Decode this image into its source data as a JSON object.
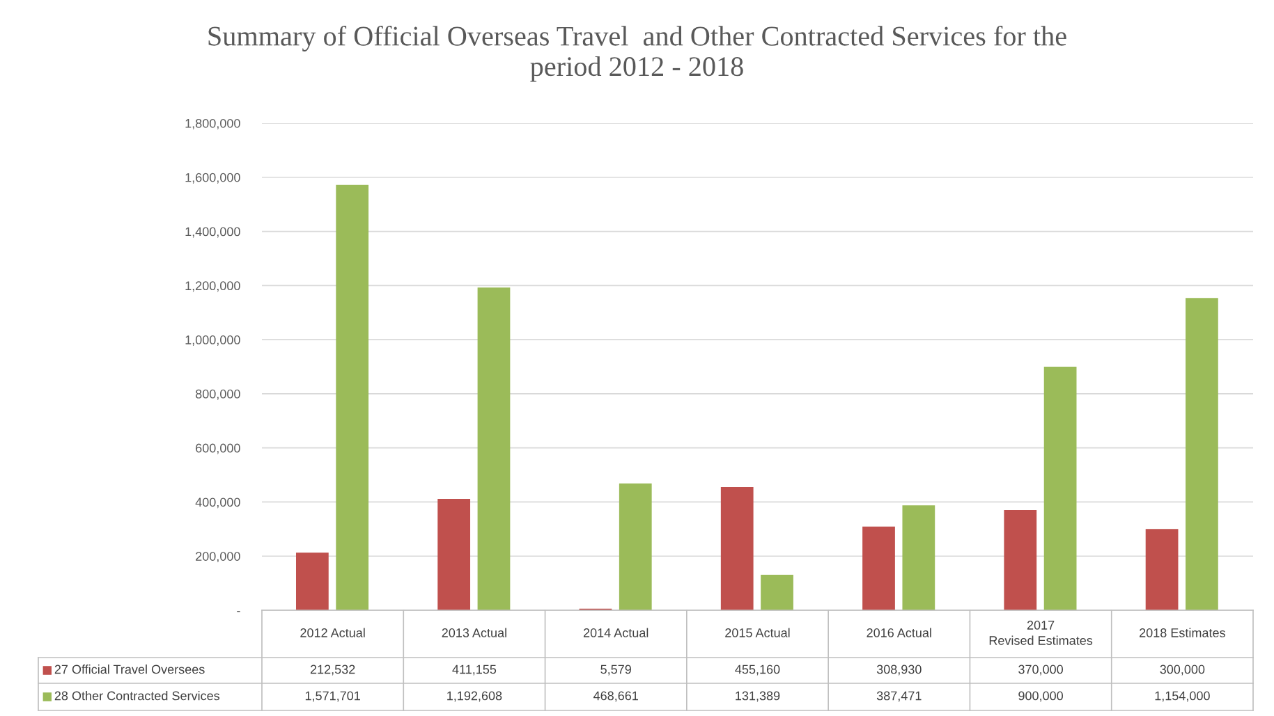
{
  "chart_data": {
    "type": "bar",
    "title": "Summary of Official Overseas Travel  and Other Contracted Services for the period 2012 - 2018",
    "categories": [
      "2012 Actual",
      "2013 Actual",
      "2014 Actual",
      "2015 Actual",
      "2016 Actual",
      "2017 Revised Estimates",
      "2018 Estimates"
    ],
    "series": [
      {
        "name": "27 Official Travel Oversees",
        "color": "#c0504d",
        "values": [
          212532,
          411155,
          5579,
          455160,
          308930,
          370000,
          300000
        ],
        "value_labels": [
          "212,532",
          "411,155",
          "5,579",
          "455,160",
          "308,930",
          "370,000",
          "300,000"
        ]
      },
      {
        "name": "28 Other Contracted Services",
        "color": "#9bbb59",
        "values": [
          1571701,
          1192608,
          468661,
          131389,
          387471,
          900000,
          1154000
        ],
        "value_labels": [
          "1,571,701",
          "1,192,608",
          "468,661",
          "131,389",
          "387,471",
          "900,000",
          "1,154,000"
        ]
      }
    ],
    "ylim": [
      0,
      1800000
    ],
    "yticks": [
      {
        "value": 0,
        "label": "-"
      },
      {
        "value": 200000,
        "label": "200,000"
      },
      {
        "value": 400000,
        "label": "400,000"
      },
      {
        "value": 600000,
        "label": "600,000"
      },
      {
        "value": 800000,
        "label": "800,000"
      },
      {
        "value": 1000000,
        "label": "1,000,000"
      },
      {
        "value": 1200000,
        "label": "1,200,000"
      },
      {
        "value": 1400000,
        "label": "1,400,000"
      },
      {
        "value": 1600000,
        "label": "1,600,000"
      },
      {
        "value": 1800000,
        "label": "1,800,000"
      }
    ],
    "grid": "y",
    "legend": "bottom"
  }
}
